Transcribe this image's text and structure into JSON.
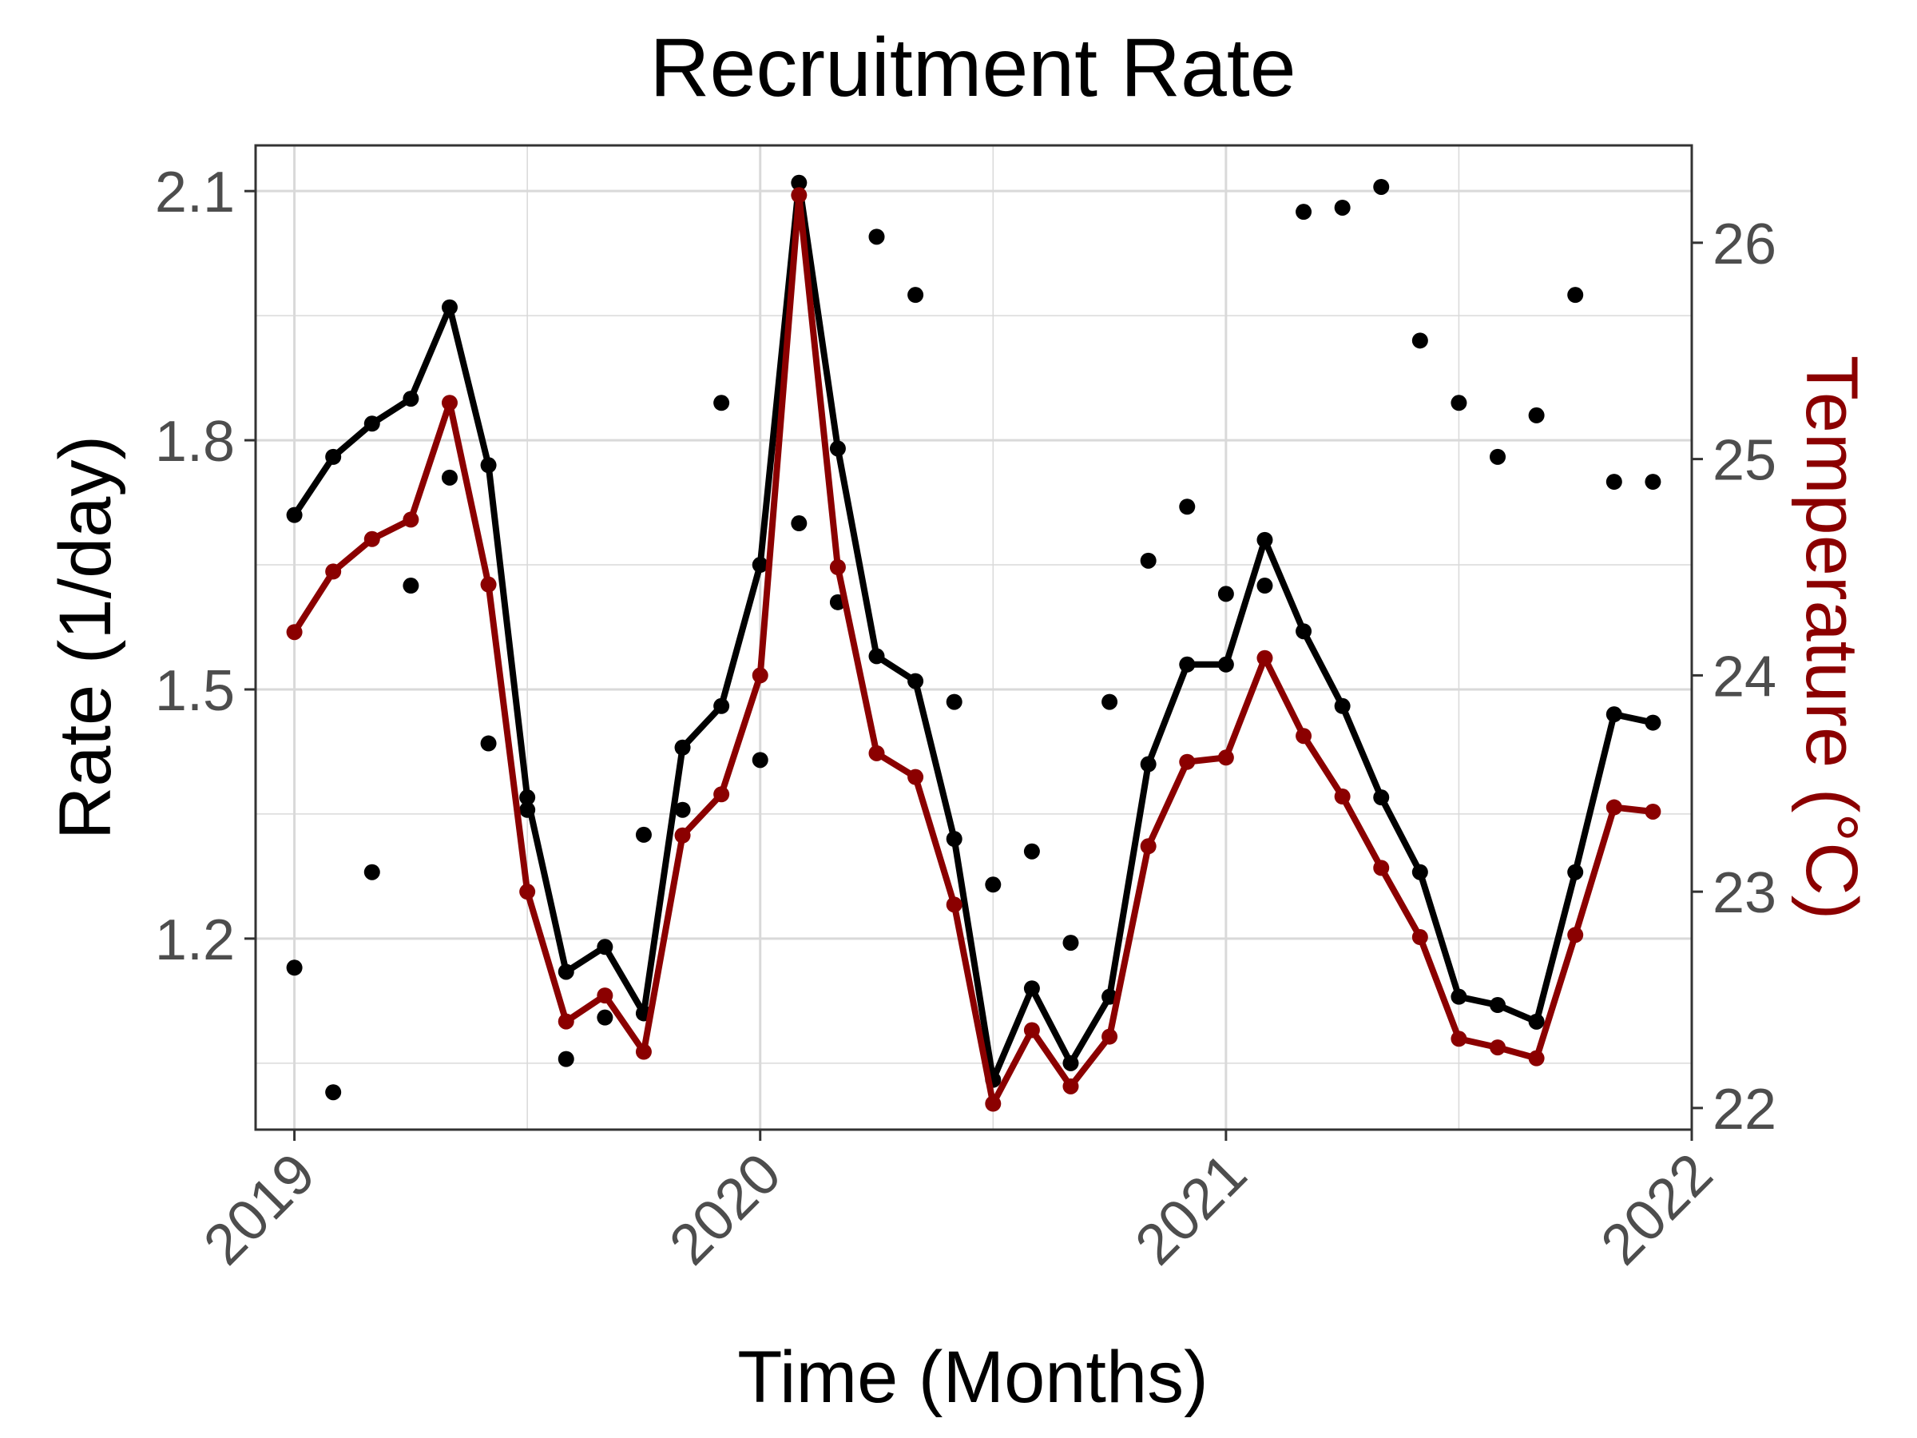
{
  "chart_data": {
    "type": "line",
    "title": "Recruitment Rate",
    "xlabel": "Time (Months)",
    "ylabel": "Rate (1/day)",
    "y2label": "Temperature (°C)",
    "x_ticks": [
      "2019",
      "2020",
      "2021",
      "2022"
    ],
    "x_range": [
      "2018-12",
      "2022-01"
    ],
    "y_ticks": [
      "1.2",
      "1.5",
      "1.8",
      "2.1"
    ],
    "ylim": [
      0.97,
      2.155
    ],
    "y2_ticks": [
      "22",
      "23",
      "24",
      "25",
      "26"
    ],
    "y2lim": [
      21.9,
      26.45
    ],
    "grid": true,
    "colors": {
      "rate": "#000000",
      "temperature": "#8b0000",
      "observed": "#000000",
      "grid": "#d9d9d9"
    },
    "months": [
      "2019-01",
      "2019-02",
      "2019-03",
      "2019-04",
      "2019-05",
      "2019-06",
      "2019-07",
      "2019-08",
      "2019-09",
      "2019-10",
      "2019-11",
      "2019-12",
      "2020-01",
      "2020-02",
      "2020-03",
      "2020-04",
      "2020-05",
      "2020-06",
      "2020-07",
      "2020-08",
      "2020-09",
      "2020-10",
      "2020-11",
      "2020-12",
      "2021-01",
      "2021-02",
      "2021-03",
      "2021-04",
      "2021-05",
      "2021-06",
      "2021-07",
      "2021-08",
      "2021-09",
      "2021-10",
      "2021-11",
      "2021-12"
    ],
    "series": [
      {
        "role": "rate-line",
        "axis": "left",
        "values": [
          1.71,
          1.78,
          1.82,
          1.85,
          1.96,
          1.77,
          1.37,
          1.16,
          1.19,
          1.11,
          1.43,
          1.48,
          1.65,
          2.11,
          1.79,
          1.54,
          1.51,
          1.32,
          1.03,
          1.14,
          1.05,
          1.13,
          1.41,
          1.53,
          1.53,
          1.68,
          1.57,
          1.48,
          1.37,
          1.28,
          1.13,
          1.12,
          1.1,
          1.28,
          1.47,
          1.46
        ]
      },
      {
        "role": "temperature-line",
        "axis": "right",
        "values": [
          24.2,
          24.48,
          24.63,
          24.72,
          25.26,
          24.42,
          23.0,
          22.4,
          22.52,
          22.26,
          23.26,
          23.45,
          24.0,
          26.22,
          24.5,
          23.64,
          23.53,
          22.94,
          22.02,
          22.36,
          22.1,
          22.33,
          23.21,
          23.6,
          23.62,
          24.08,
          23.72,
          23.44,
          23.11,
          22.79,
          22.32,
          22.28,
          22.23,
          22.8,
          23.39,
          23.37
        ]
      },
      {
        "role": "observed-points",
        "axis": "left",
        "values": [
          1.165,
          1.015,
          1.28,
          1.625,
          1.755,
          1.435,
          1.355,
          1.055,
          1.105,
          1.325,
          1.355,
          1.845,
          1.415,
          1.7,
          1.605,
          2.045,
          1.975,
          1.485,
          1.265,
          1.305,
          1.195,
          1.485,
          1.655,
          1.72,
          1.615,
          1.625,
          2.075,
          2.08,
          2.105,
          1.92,
          1.845,
          1.78,
          1.83,
          1.975,
          1.75,
          1.75
        ]
      }
    ]
  }
}
